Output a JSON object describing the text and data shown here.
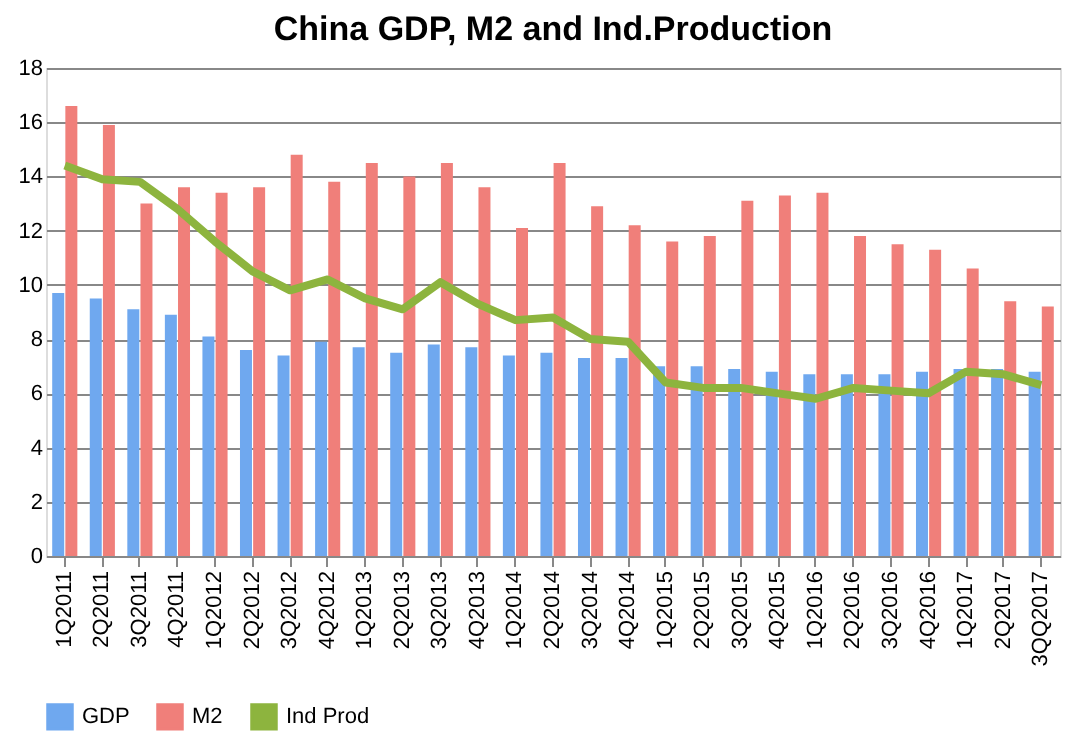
{
  "chart_data": {
    "type": "bar",
    "title": "China GDP, M2 and Ind.Production",
    "categories": [
      "1Q2011",
      "2Q2011",
      "3Q2011",
      "4Q2011",
      "1Q2012",
      "2Q2012",
      "3Q2012",
      "4Q2012",
      "1Q2013",
      "2Q2013",
      "3Q2013",
      "4Q2013",
      "1Q2014",
      "2Q2014",
      "3Q2014",
      "4Q2014",
      "1Q2015",
      "2Q2015",
      "3Q2015",
      "4Q2015",
      "1Q2016",
      "2Q2016",
      "3Q2016",
      "4Q2016",
      "1Q2017",
      "2Q2017",
      "3QQ2017"
    ],
    "series": [
      {
        "name": "GDP",
        "color": "#6fa8ef",
        "values": [
          9.7,
          9.5,
          9.1,
          8.9,
          8.1,
          7.6,
          7.4,
          7.9,
          7.7,
          7.5,
          7.8,
          7.7,
          7.4,
          7.5,
          7.3,
          7.3,
          7.0,
          7.0,
          6.9,
          6.8,
          6.7,
          6.7,
          6.7,
          6.8,
          6.9,
          6.9,
          6.8
        ]
      },
      {
        "name": "M2",
        "color": "#f07f7a",
        "values": [
          16.6,
          15.9,
          13.0,
          13.6,
          13.4,
          13.6,
          14.8,
          13.8,
          14.5,
          14.0,
          14.5,
          13.6,
          12.1,
          14.5,
          12.9,
          12.2,
          11.6,
          11.8,
          13.1,
          13.3,
          13.4,
          11.8,
          11.5,
          11.3,
          10.6,
          9.4,
          9.2
        ]
      },
      {
        "name": "Ind Prod",
        "color": "#8db43e",
        "type": "line",
        "values": [
          14.4,
          13.9,
          13.8,
          12.8,
          11.6,
          10.5,
          9.8,
          10.2,
          9.5,
          9.1,
          10.1,
          9.3,
          8.7,
          8.8,
          8.0,
          7.9,
          6.4,
          6.2,
          6.2,
          6.0,
          5.8,
          6.2,
          6.1,
          6.0,
          6.8,
          6.7,
          6.3
        ]
      }
    ],
    "ylim": [
      0,
      18
    ],
    "yticks": [
      0,
      2,
      4,
      6,
      8,
      10,
      12,
      14,
      16,
      18
    ],
    "grid": "y",
    "legend": "bottom",
    "marker": "none",
    "line_style": "solid"
  }
}
